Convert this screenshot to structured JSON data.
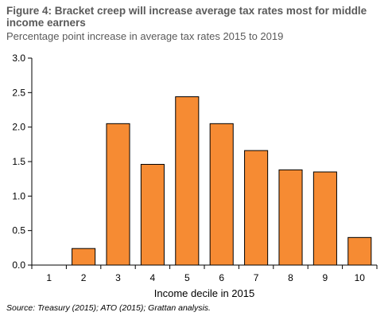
{
  "chart_data": {
    "type": "bar",
    "title": "Figure 4: Bracket creep will increase average tax rates most for middle income earners",
    "subtitle": "Percentage point increase in average tax rates 2015 to 2019",
    "xlabel": "Income decile in 2015",
    "ylabel": "",
    "categories": [
      "1",
      "2",
      "3",
      "4",
      "5",
      "6",
      "7",
      "8",
      "9",
      "10"
    ],
    "values": [
      0.0,
      0.24,
      2.05,
      1.46,
      2.44,
      2.05,
      1.66,
      1.38,
      1.35,
      0.4
    ],
    "ylim": [
      0,
      3.0
    ],
    "yticks": [
      "0.0",
      "0.5",
      "1.0",
      "1.5",
      "2.0",
      "2.5",
      "3.0"
    ],
    "grid": false,
    "legend": "none",
    "bar_color": "#F68B33",
    "bar_edge_color": "#000000"
  },
  "source": "Source: Treasury (2015); ATO (2015); Grattan analysis."
}
